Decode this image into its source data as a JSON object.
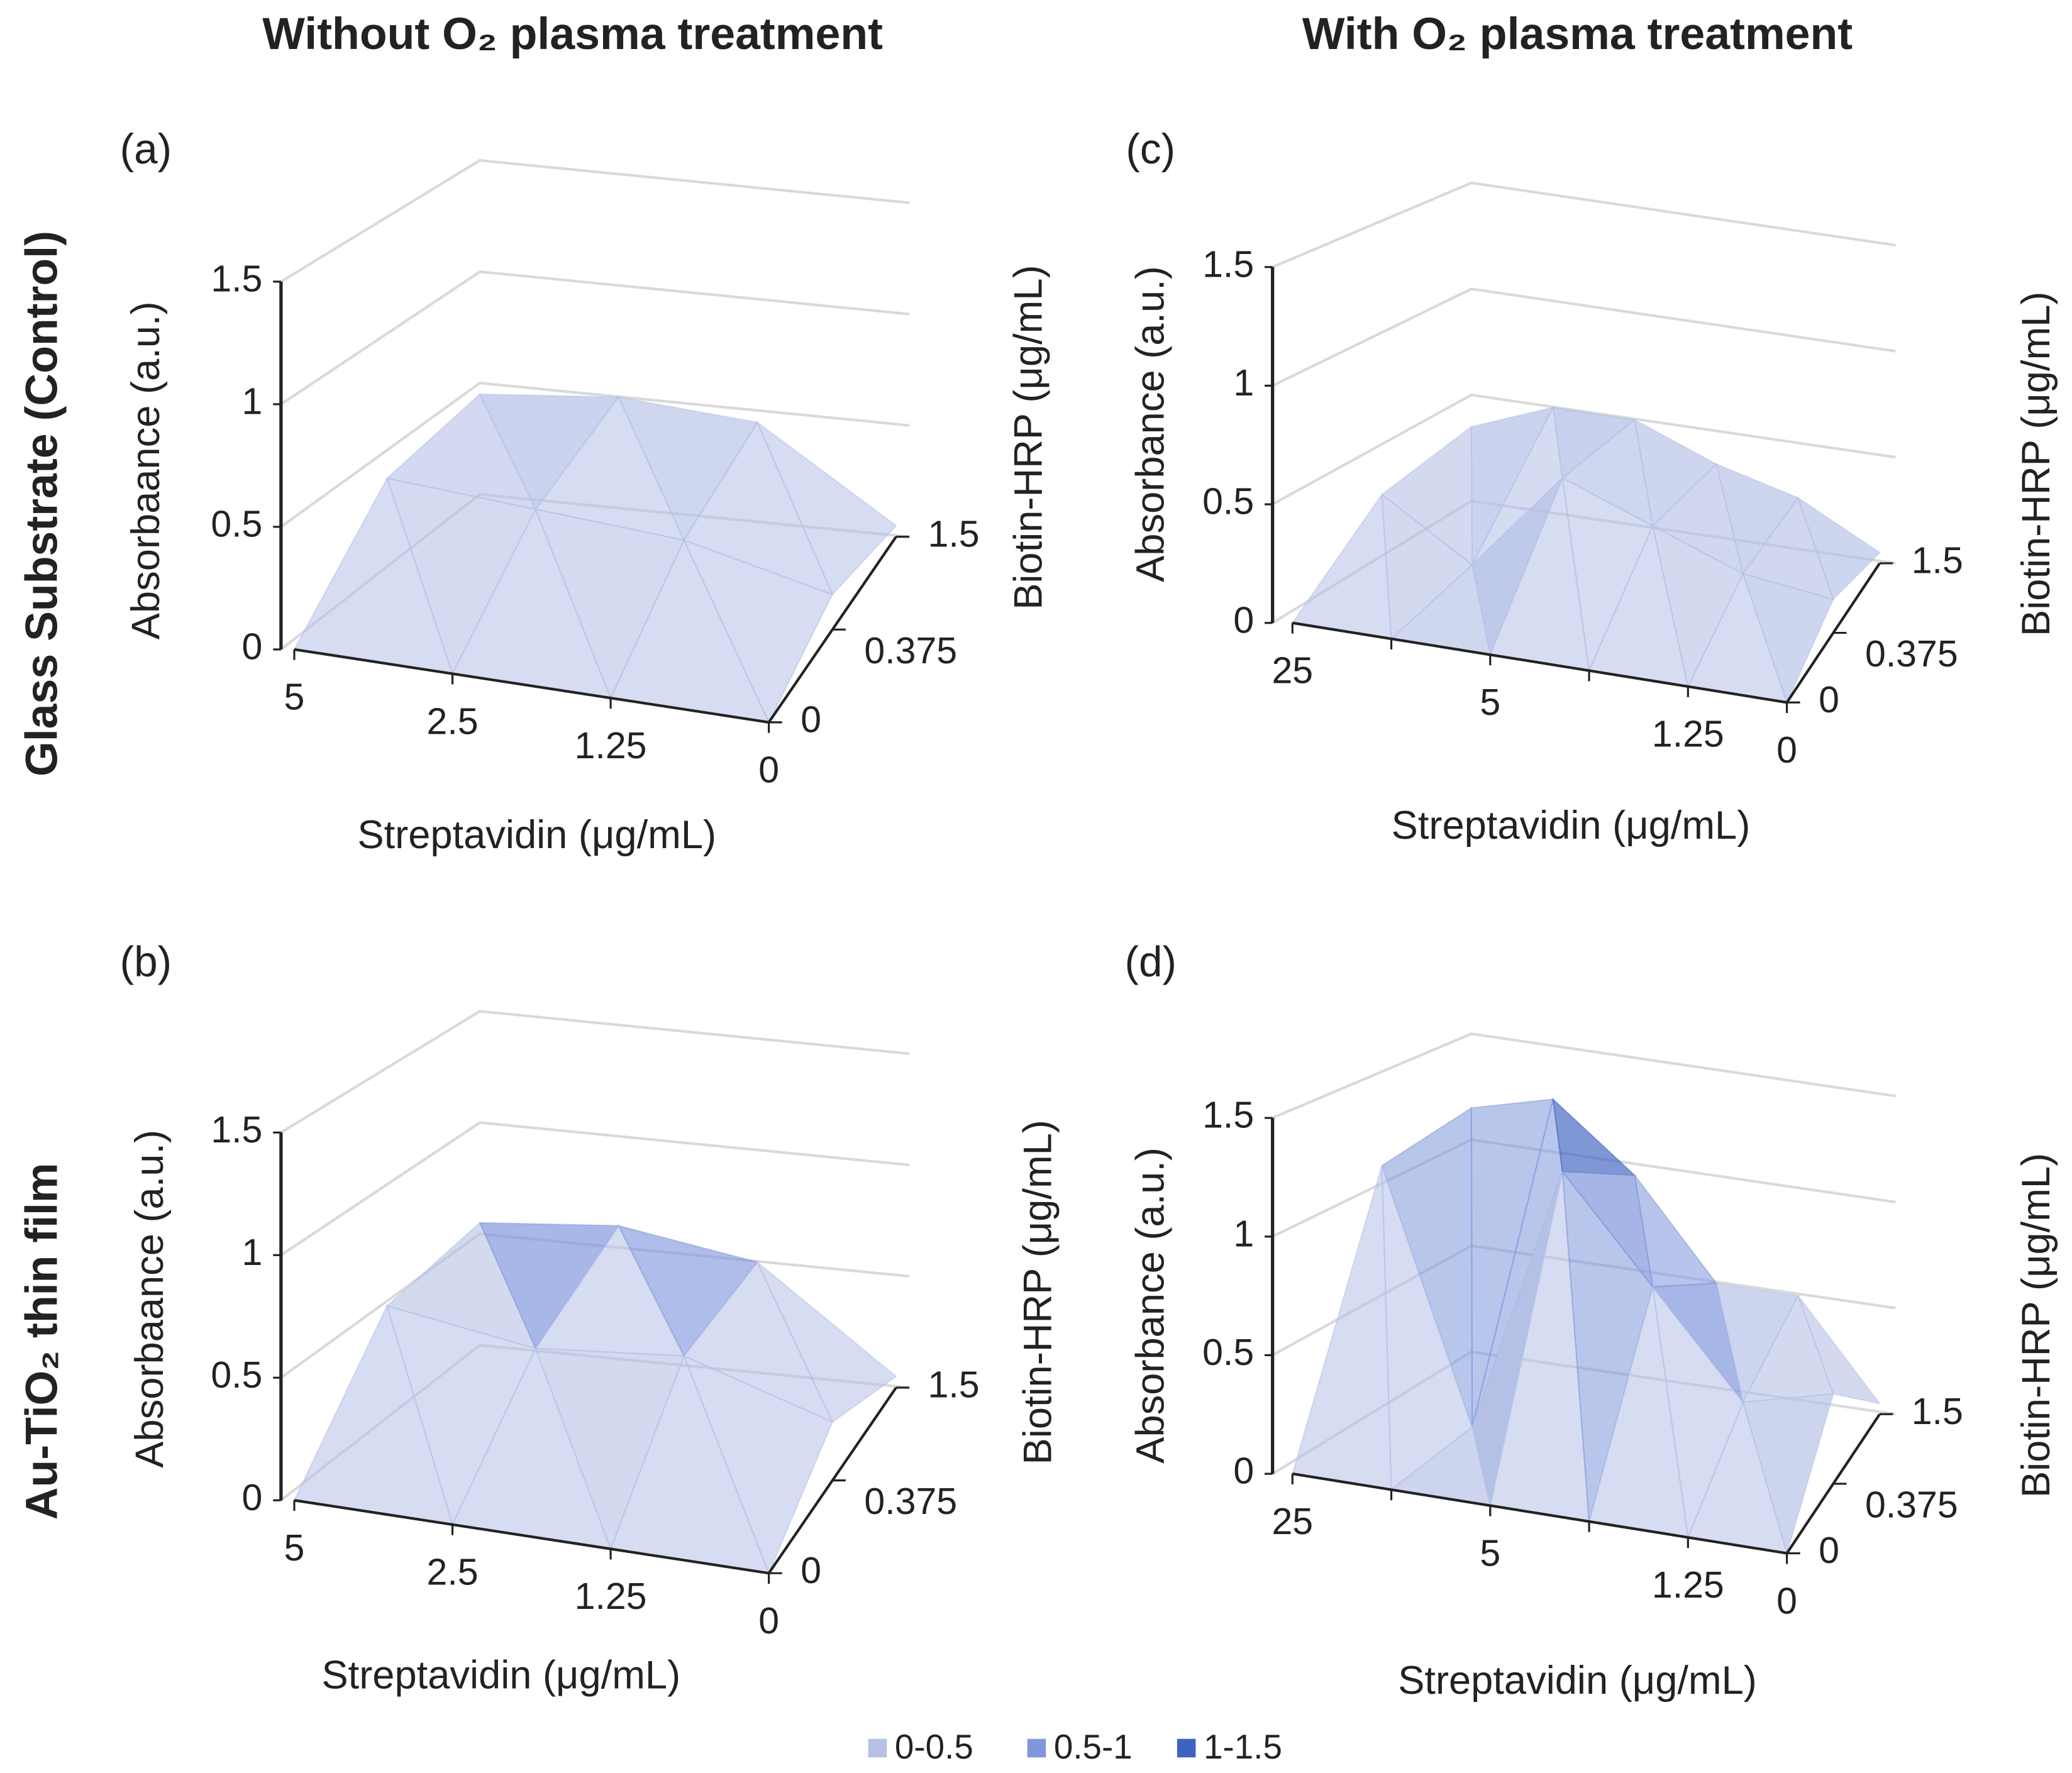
{
  "column_titles": [
    "Without O₂ plasma treatment",
    "With O₂ plasma treatment"
  ],
  "row_titles": [
    "Glass Substrate (Control)",
    "Au-TiO₂ thin film"
  ],
  "legend": [
    {
      "name": "0-0.5",
      "color": "#b4c0e6"
    },
    {
      "name": "0.5-1",
      "color": "#8097dc"
    },
    {
      "name": "1-1.5",
      "color": "#3d62c0"
    }
  ],
  "chart_data": [
    {
      "type": "surface",
      "label": "(a)",
      "y_title": "Absorbaance (a.u.)",
      "x_title": "Streptavidin (μg/mL)",
      "z_title": "Biotin-HRP (μg/mL)",
      "x_categories": [
        "5",
        "2.5",
        "1.25",
        "0"
      ],
      "z_categories": [
        "0",
        "0.375",
        "1.5"
      ],
      "values": [
        [
          0,
          0,
          0,
          0
        ],
        [
          0.4,
          0.35,
          0.3,
          0.15
        ],
        [
          0.45,
          0.5,
          0.45,
          0.05
        ]
      ],
      "ylim": [
        0,
        1.5
      ],
      "yticks": [
        0,
        0.5,
        1,
        1.5
      ],
      "grid": true
    },
    {
      "type": "surface",
      "label": "(b)",
      "y_title": "Absorbaance (a.u.)",
      "x_title": "Streptavidin (μg/mL)",
      "z_title": "Biotin-HRP (μg/mL)",
      "x_categories": [
        "5",
        "2.5",
        "1.25",
        "0"
      ],
      "z_categories": [
        "0",
        "0.375",
        "1.5"
      ],
      "values": [
        [
          0,
          0,
          0,
          0
        ],
        [
          0.5,
          0.4,
          0.45,
          0.25
        ],
        [
          0.55,
          0.6,
          0.5,
          0.05
        ]
      ],
      "ylim": [
        0,
        1.5
      ],
      "yticks": [
        0,
        0.5,
        1,
        1.5
      ],
      "grid": true
    },
    {
      "type": "surface",
      "label": "(c)",
      "y_title": "Absorbance (a.u.)",
      "x_title": "Streptavidin (μg/mL)",
      "z_title": "Biotin-HRP (μg/mL)",
      "x_categories": [
        "25",
        null,
        "5",
        null,
        "1.25",
        "0"
      ],
      "z_categories": [
        "0",
        "0.375",
        "1.5"
      ],
      "values": [
        [
          0,
          0,
          0,
          0,
          0,
          0
        ],
        [
          0.3,
          0.05,
          0.5,
          0.35,
          0.2,
          0.15
        ],
        [
          0.35,
          0.5,
          0.5,
          0.35,
          0.25,
          0.05
        ]
      ],
      "ylim": [
        0,
        1.5
      ],
      "yticks": [
        0,
        0.5,
        1,
        1.5
      ],
      "grid": true
    },
    {
      "type": "surface",
      "label": "(d)",
      "y_title": "Absorbance (a.u.)",
      "x_title": "Streptavidin (μg/mL)",
      "z_title": "Biotin-HRP (μg/mL)",
      "x_categories": [
        "25",
        null,
        "5",
        null,
        "1.25",
        "0"
      ],
      "z_categories": [
        "0",
        "0.375",
        "1.5"
      ],
      "values": [
        [
          0,
          0,
          0,
          0,
          0,
          0
        ],
        [
          1.1,
          0,
          1.2,
          0.75,
          0.3,
          0.4
        ],
        [
          1.15,
          1.25,
          0.95,
          0.5,
          0.5,
          0.05
        ]
      ],
      "ylim": [
        0,
        1.5
      ],
      "yticks": [
        0,
        0.5,
        1,
        1.5
      ],
      "grid": true
    }
  ]
}
